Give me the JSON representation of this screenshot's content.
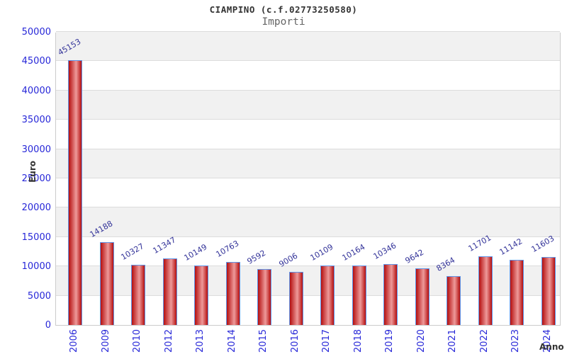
{
  "header": {
    "title": "CIAMPINO (c.f.02773250580)",
    "subtitle": "Importi"
  },
  "chart_data": {
    "type": "bar",
    "title": "CIAMPINO (c.f.02773250580)",
    "subtitle": "Importi",
    "xlabel": "Anno",
    "ylabel": "Euro",
    "categories": [
      "2006",
      "2009",
      "2010",
      "2012",
      "2013",
      "2014",
      "2015",
      "2016",
      "2017",
      "2018",
      "2019",
      "2020",
      "2021",
      "2022",
      "2023",
      "2024"
    ],
    "values": [
      45153,
      14188,
      10327,
      11347,
      10149,
      10763,
      9592,
      9006,
      10109,
      10164,
      10346,
      9642,
      8364,
      11701,
      11142,
      11603
    ],
    "ylim": [
      0,
      50000
    ],
    "ytick_step": 5000,
    "yticks": [
      0,
      5000,
      10000,
      15000,
      20000,
      25000,
      30000,
      35000,
      40000,
      45000,
      50000
    ],
    "grid": "horizontal-gridlines-with-alternating-bands",
    "legend_position": "none",
    "bar_value_label_rotation_deg": -30,
    "x_tick_rotation_deg": -90,
    "colors": {
      "title": "#333333",
      "subtitle": "#666666",
      "tick_label": "#2727d8",
      "value_label": "#333399",
      "axis_title": "#333333",
      "bar_edge": "#b50f0f",
      "bar_center": "#ee9a9a",
      "bar_border": "#5f95e8",
      "band_gray": "#f1f1f1",
      "band_white": "#ffffff",
      "gridline": "#dcdcdc",
      "plot_border": "#cccccc",
      "background": "#ffffff"
    }
  }
}
